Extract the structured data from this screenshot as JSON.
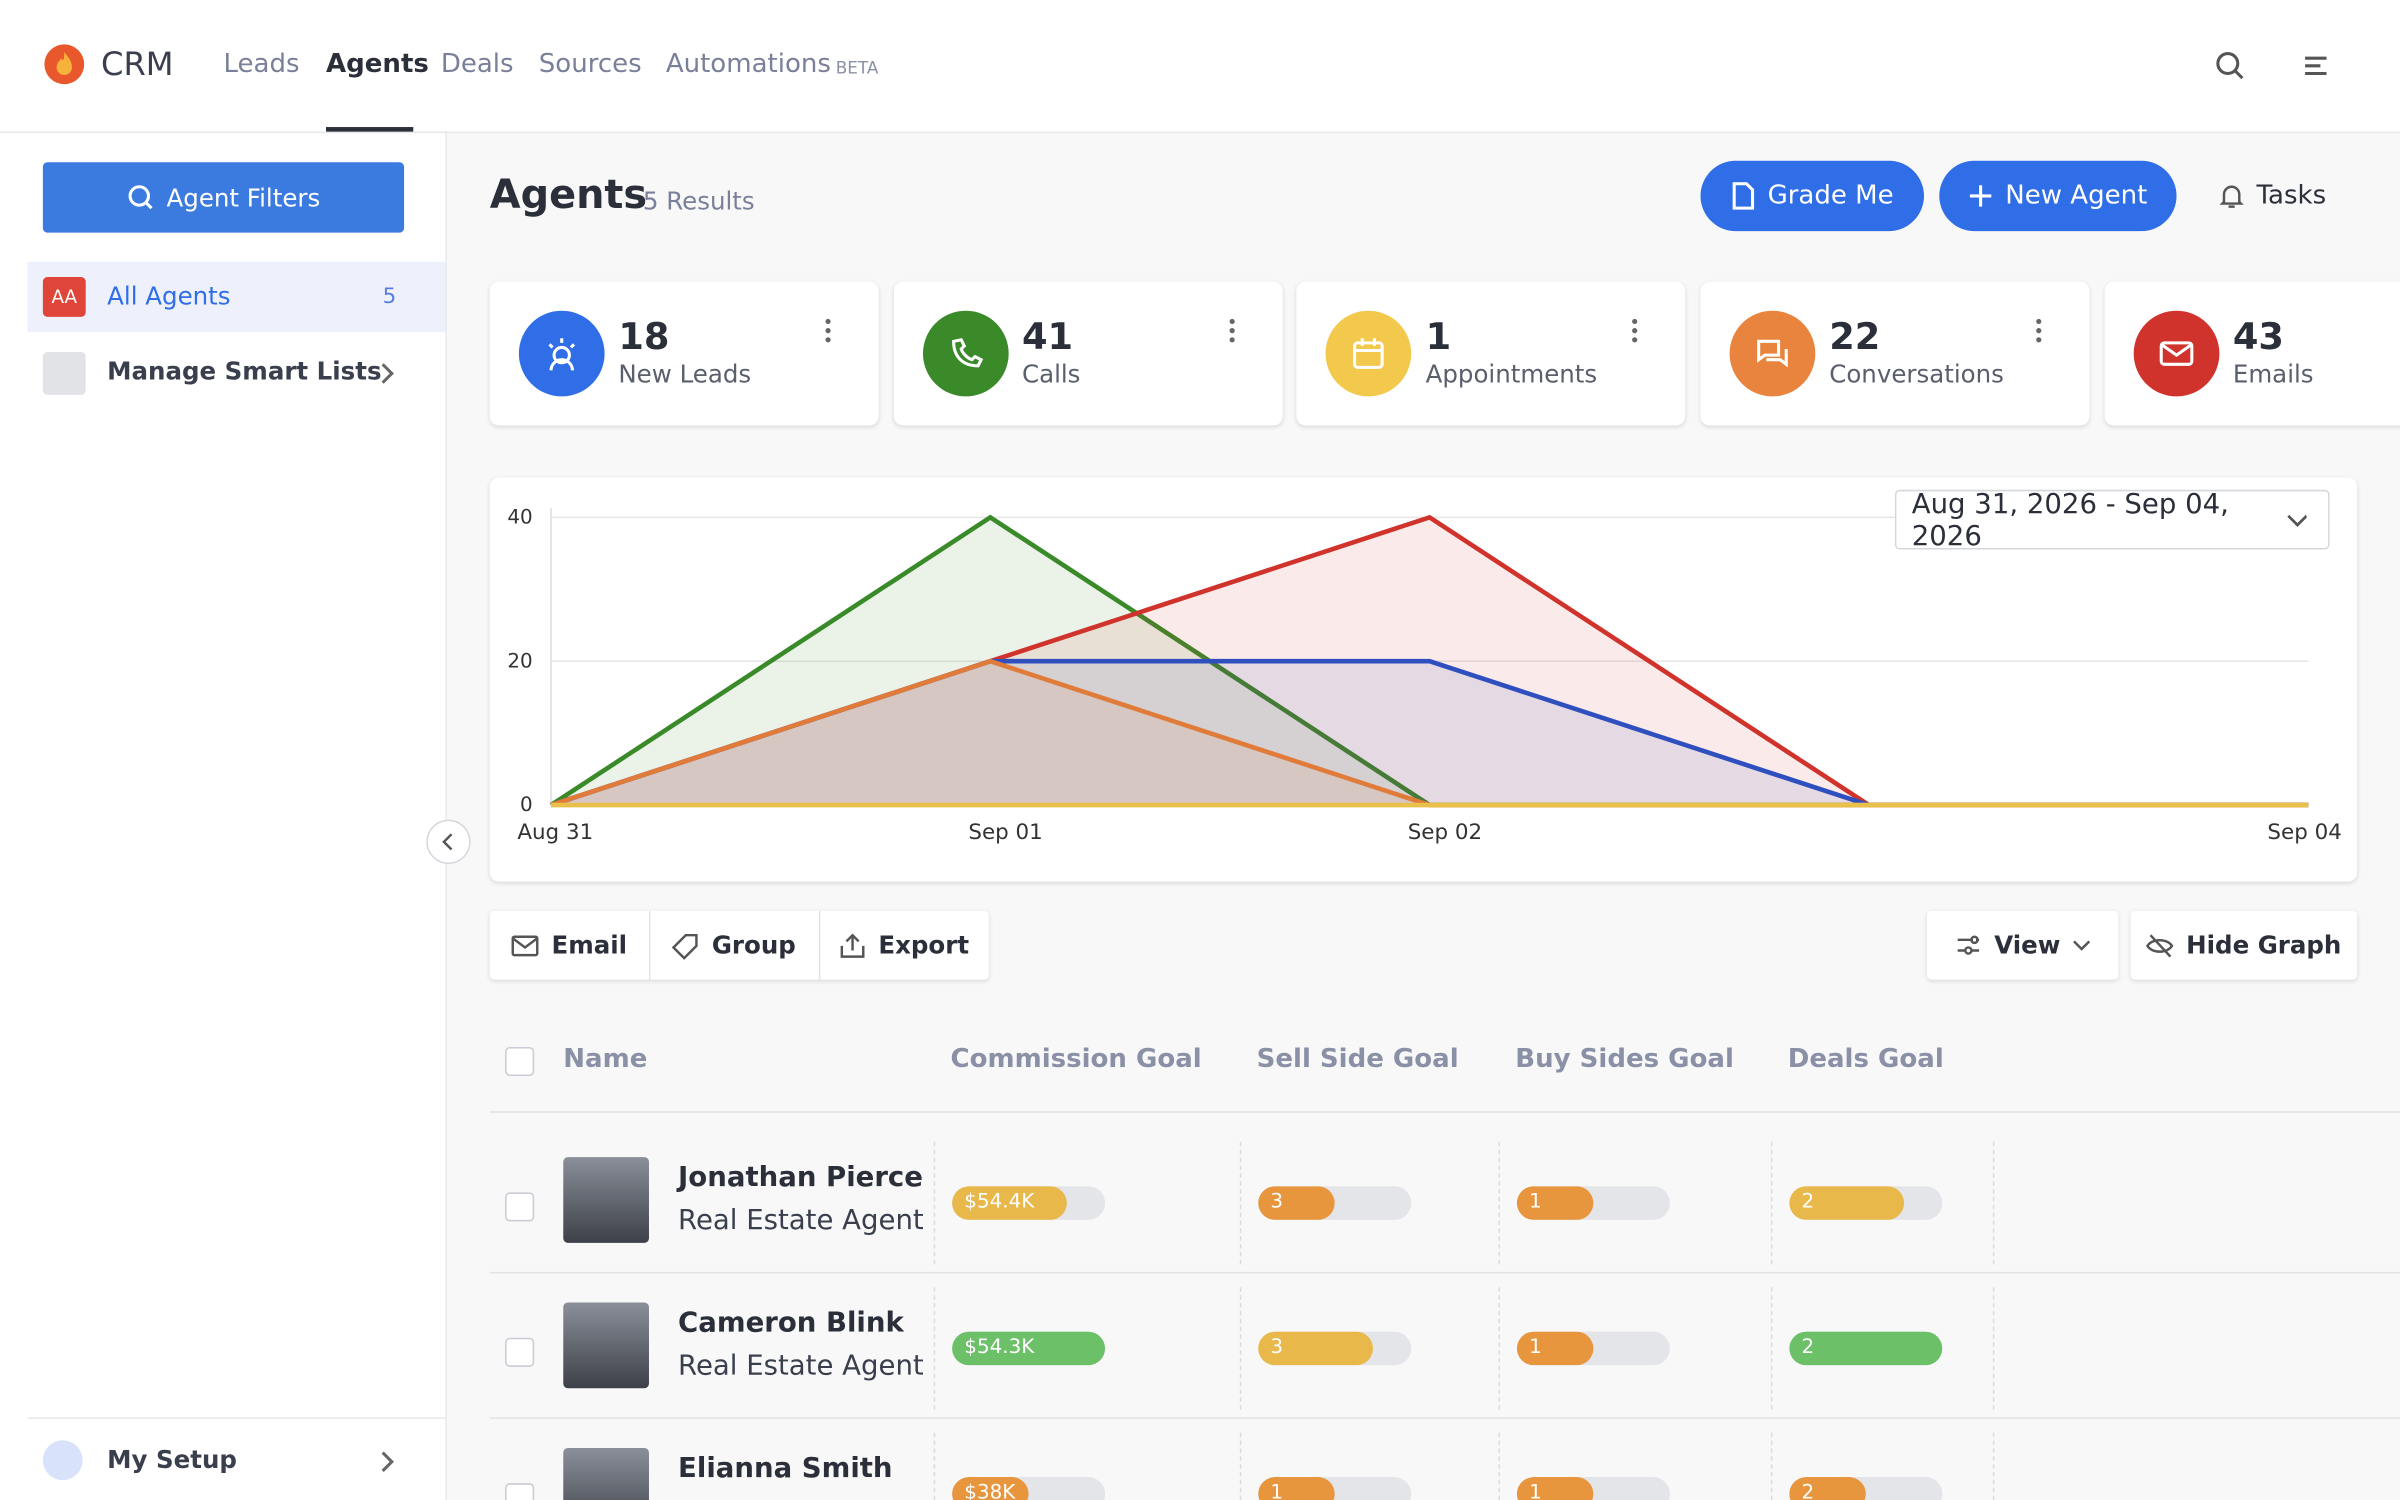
{
  "nav": {
    "brand": "CRM",
    "items": [
      "Leads",
      "Agents",
      "Deals",
      "Sources",
      "Automations"
    ],
    "badge": "BETA",
    "active": 1
  },
  "sidebar": {
    "filter_button": "Agent Filters",
    "lists": [
      {
        "badge": "AA",
        "label": "All Agents",
        "count": "5"
      },
      {
        "label": "Manage Smart Lists"
      }
    ],
    "footer": "My Setup"
  },
  "header": {
    "title": "Agents",
    "results": "5 Results",
    "buttons": [
      "Grade Me",
      "New Agent",
      "Tasks"
    ]
  },
  "stats": [
    {
      "value": "18",
      "label": "New Leads",
      "color": "#2f6ee6"
    },
    {
      "value": "41",
      "label": "Calls",
      "color": "#3a8a2a"
    },
    {
      "value": "1",
      "label": "Appointments",
      "color": "#f2c94c"
    },
    {
      "value": "22",
      "label": "Conversations",
      "color": "#e8843e"
    },
    {
      "value": "43",
      "label": "Emails",
      "color": "#d0332b"
    }
  ],
  "chart_data": {
    "type": "area",
    "date_range": "Aug 31, 2026 - Sep 04, 2026",
    "categories": [
      "Aug 31",
      "Sep 01",
      "Sep 02",
      null,
      "Sep 04"
    ],
    "series": [
      {
        "color": "#3a8a2a",
        "values": [
          0,
          40,
          0,
          0,
          0
        ]
      },
      {
        "color": "#d0332b",
        "values": [
          0,
          20,
          40,
          0,
          0
        ]
      },
      {
        "color": "#2f4fbf",
        "values": [
          0,
          20,
          20,
          0,
          0
        ]
      },
      {
        "color": "#e07b39",
        "values": [
          0,
          20,
          0,
          0,
          0
        ]
      },
      {
        "color": "#e8c04a",
        "values": [
          0,
          0,
          0,
          0,
          0
        ]
      }
    ],
    "ylim": [
      0,
      40
    ],
    "yticks": [
      0,
      20,
      40
    ],
    "grid": true
  },
  "toolbar": {
    "left": [
      "Email",
      "Group",
      "Export"
    ],
    "right": [
      "View",
      "Hide Graph"
    ]
  },
  "table": {
    "columns": [
      "Name",
      "Commission Goal",
      "Sell Side Goal",
      "Buy Sides Goal",
      "Deals Goal"
    ],
    "rows": [
      {
        "name": "Jonathan Pierce",
        "role": "Real Estate Agent",
        "cells": [
          {
            "label": "$54.4K",
            "progress": 75,
            "color": "#e8b84a"
          },
          {
            "label": "3",
            "progress": 50,
            "color": "#e8963e"
          },
          {
            "label": "1",
            "progress": 50,
            "color": "#e8963e"
          },
          {
            "label": "2",
            "progress": 75,
            "color": "#e8b84a"
          }
        ]
      },
      {
        "name": "Cameron Blink",
        "role": "Real Estate Agent",
        "cells": [
          {
            "label": "$54.3K",
            "progress": 100,
            "color": "#6cc068"
          },
          {
            "label": "3",
            "progress": 75,
            "color": "#e8b84a"
          },
          {
            "label": "1",
            "progress": 50,
            "color": "#e8963e"
          },
          {
            "label": "2",
            "progress": 100,
            "color": "#6cc068"
          }
        ]
      },
      {
        "name": "Elianna Smith",
        "cells": [
          {
            "label": "$38K",
            "progress": 50,
            "color": "#e8963e"
          },
          {
            "label": "1",
            "progress": 50,
            "color": "#e8963e"
          },
          {
            "label": "1",
            "progress": 50,
            "color": "#e8963e"
          },
          {
            "label": "2",
            "progress": 50,
            "color": "#e8963e"
          }
        ]
      }
    ]
  }
}
